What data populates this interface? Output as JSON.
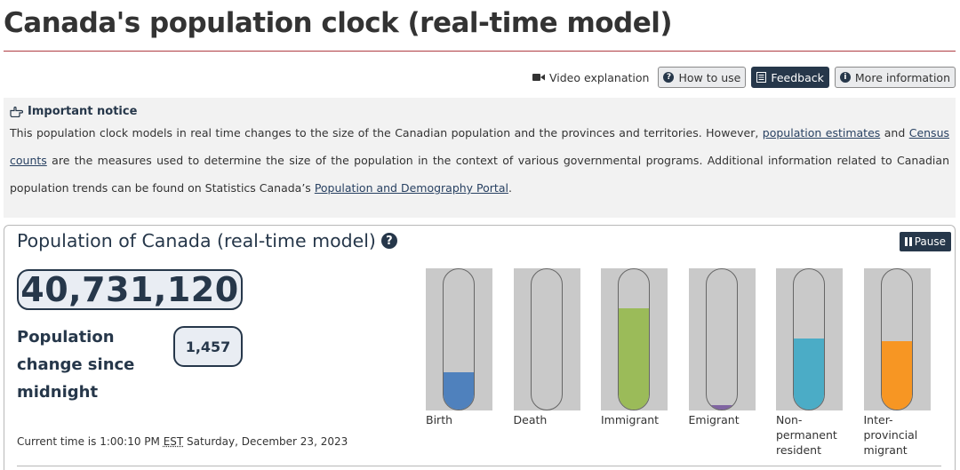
{
  "page": {
    "title": "Canada's population clock (real-time model)"
  },
  "toolbar": {
    "video_label": "Video explanation",
    "how_to_use_label": "How to use",
    "feedback_label": "Feedback",
    "more_info_label": "More information"
  },
  "notice": {
    "heading": "Important notice",
    "text_1": "This population clock models in real time changes to the size of the Canadian population and the provinces and territories. However, ",
    "link_estimates": "population estimates",
    "text_2": " and ",
    "link_census": "Census counts",
    "text_3": " are the measures used to determine the size of the population in the context of various governmental programs. Additional information related to Canadian population trends can be found on Statistics Canada’s ",
    "link_portal": "Population and Demography Portal",
    "text_4": "."
  },
  "clock": {
    "title": "Population of Canada (real-time model)",
    "pause_label": "Pause",
    "population": "40,731,120",
    "change_label": "Population change since midnight",
    "change_value": "1,457",
    "time_prefix": "Current time is 1:00:10 PM ",
    "time_zone": "EST",
    "time_suffix": " Saturday, December 23, 2023"
  },
  "components": [
    {
      "label": "Birth",
      "level": 0.26,
      "color": "#4f81bd"
    },
    {
      "label": "Death",
      "level": 0.0,
      "color": "#8a8a8a"
    },
    {
      "label": "Immigrant",
      "level": 0.71,
      "color": "#9bbb59"
    },
    {
      "label": "Emigrant",
      "level": 0.03,
      "color": "#8064a2"
    },
    {
      "label": "Non-permanent resident",
      "level": 0.5,
      "color": "#4bacc6"
    },
    {
      "label": "Inter-provincial migrant",
      "level": 0.48,
      "color": "#f79623"
    }
  ]
}
